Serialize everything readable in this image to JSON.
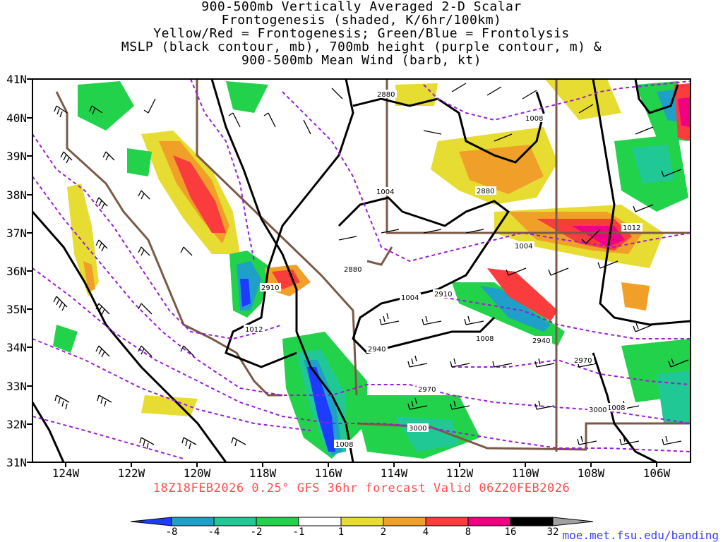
{
  "title_lines": [
    "900-500mb Vertically Averaged 2-D Scalar",
    "Frontogenesis (shaded, K/6hr/100km)",
    "Yellow/Red = Frontogenesis;  Green/Blue = Frontolysis",
    "MSLP (black contour, mb), 700mb height (purple contour, m) &",
    "900-500mb Mean Wind (barb, kt)"
  ],
  "lat_labels": [
    "41N",
    "40N",
    "39N",
    "38N",
    "37N",
    "36N",
    "35N",
    "34N",
    "33N",
    "32N",
    "31N"
  ],
  "lon_labels": [
    "124W",
    "122W",
    "120W",
    "118W",
    "116W",
    "114W",
    "112W",
    "110W",
    "108W",
    "106W"
  ],
  "valid_text": "18Z18FEB2026 0.25° GFS 36hr forecast Valid 06Z20FEB2026",
  "colorbar": {
    "labels": [
      "-8",
      "-4",
      "-2",
      "-1",
      "1",
      "2",
      "4",
      "8",
      "16",
      "32"
    ],
    "colors": [
      "#1e3cff",
      "#1fa0c8",
      "#20c896",
      "#22d24a",
      "#ffffff",
      "#e6dc32",
      "#f0a028",
      "#fa3c3c",
      "#f00082",
      "#000000",
      "#a0a0a0"
    ]
  },
  "mslp_labels": [
    "1004",
    "1004",
    "1004",
    "1008",
    "1008",
    "1008",
    "1008",
    "1012",
    "1012"
  ],
  "height_labels": [
    "2880",
    "2880",
    "2880",
    "2910",
    "2910",
    "2940",
    "2940",
    "2970",
    "2970",
    "3000",
    "3000"
  ],
  "url": "moe.met.fsu.edu/banding"
}
